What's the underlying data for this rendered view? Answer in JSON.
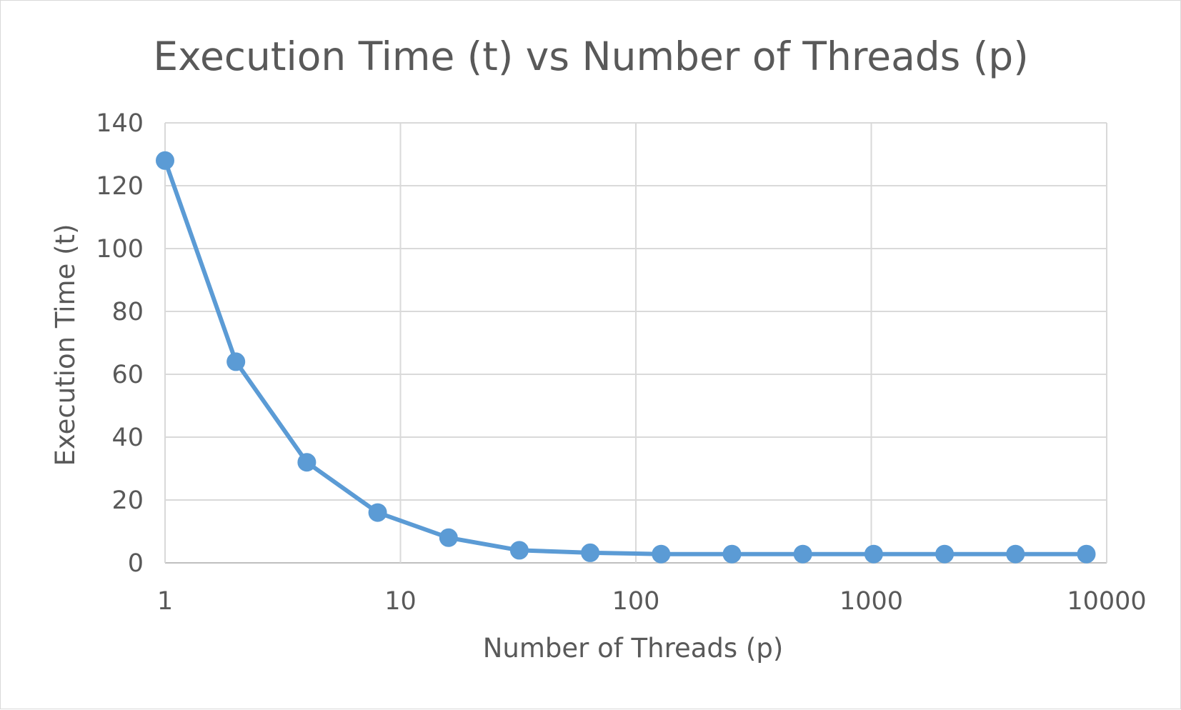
{
  "chart_data": {
    "type": "line",
    "title": "Execution Time (t) vs Number of Threads (p)",
    "xlabel": "Number of Threads (p)",
    "ylabel": "Execution Time (t)",
    "x_scale": "log10",
    "xlim": [
      1,
      10000
    ],
    "ylim": [
      0,
      140
    ],
    "x_ticks": [
      "1",
      "10",
      "100",
      "1000",
      "10000"
    ],
    "y_ticks": [
      "0",
      "20",
      "40",
      "60",
      "80",
      "100",
      "120",
      "140"
    ],
    "grid": true,
    "legend": "none",
    "series": [
      {
        "color": "#5b9bd5",
        "x": [
          1,
          2,
          4,
          8,
          16,
          32,
          64,
          128,
          256,
          512,
          1024,
          2048,
          4096,
          8192
        ],
        "y": [
          128,
          64,
          32,
          16,
          8,
          4,
          3.2,
          2.8,
          2.8,
          2.8,
          2.8,
          2.8,
          2.8,
          2.8
        ]
      }
    ]
  }
}
